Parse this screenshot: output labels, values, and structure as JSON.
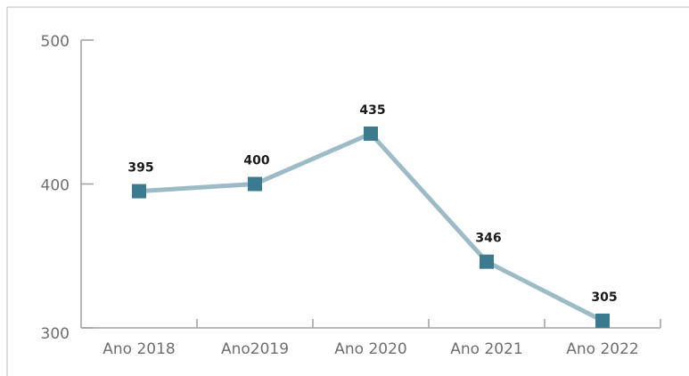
{
  "chart_data": {
    "type": "line",
    "categories": [
      "Ano 2018",
      "Ano2019",
      "Ano 2020",
      "Ano 2021",
      "Ano 2022"
    ],
    "values": [
      395,
      400,
      435,
      346,
      305
    ],
    "data_labels": [
      "395",
      "400",
      "435",
      "346",
      "305"
    ],
    "y_ticks": [
      300,
      400,
      500
    ],
    "y_tick_labels": [
      "300",
      "400",
      "500"
    ],
    "ylim": [
      300,
      500
    ],
    "grid": false,
    "legend": "none",
    "colors": {
      "line": "#9DBBC6",
      "marker": "#3C7A8F",
      "axis": "#A3A3A3",
      "tick_text": "#6E6E6E",
      "data_label_text": "#1A1A1A"
    }
  }
}
